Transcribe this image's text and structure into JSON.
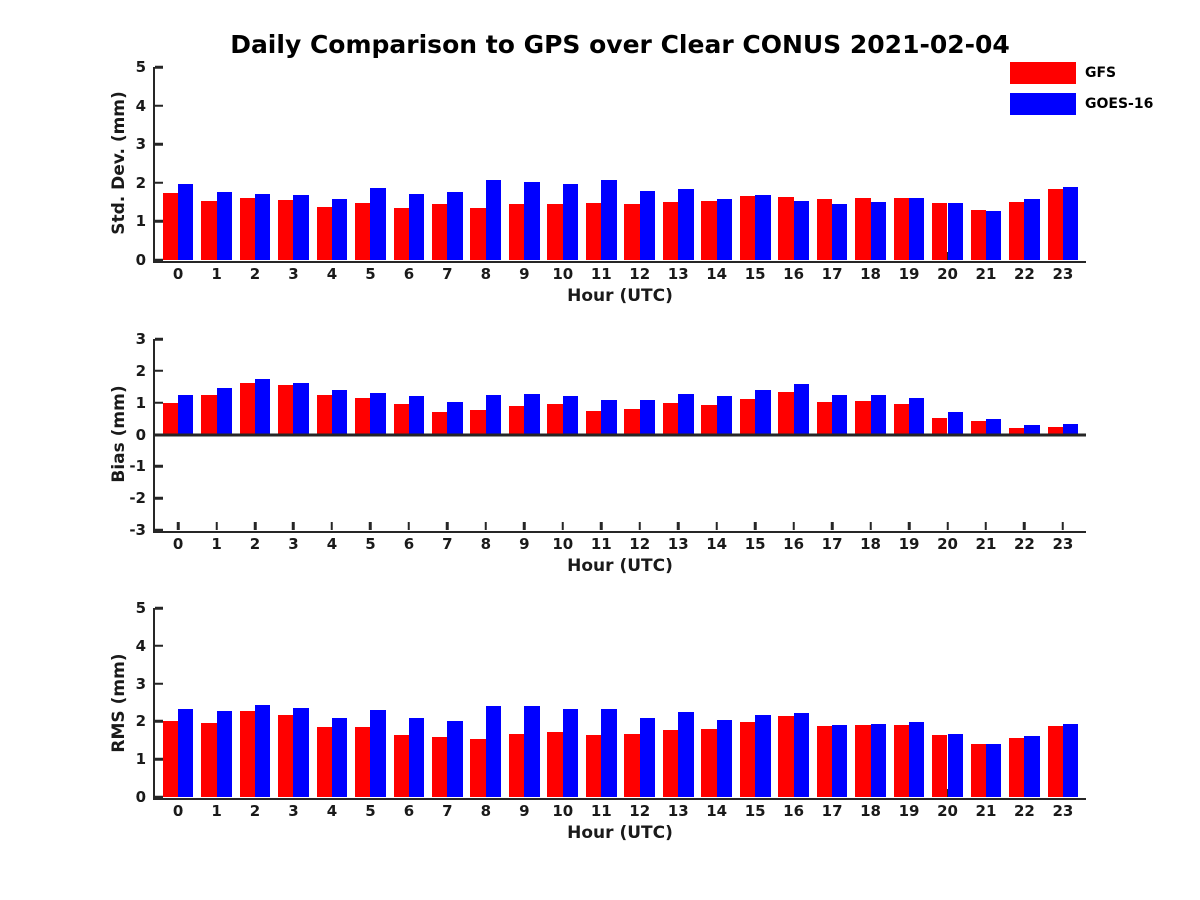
{
  "title": "Daily Comparison to GPS over Clear CONUS 2021-02-04",
  "legend": [
    {
      "label": "GFS",
      "color": "#ff0000"
    },
    {
      "label": "GOES-16",
      "color": "#0000ff"
    }
  ],
  "axis_color": "#262626",
  "chart_data": [
    {
      "type": "bar",
      "ylabel": "Std. Dev. (mm)",
      "xlabel": "Hour (UTC)",
      "ylim": [
        0,
        5
      ],
      "yticks": [
        0,
        1,
        2,
        3,
        4,
        5
      ],
      "grid": false,
      "legend_position": "top-right-outside",
      "categories": [
        "0",
        "1",
        "2",
        "3",
        "4",
        "5",
        "6",
        "7",
        "8",
        "9",
        "10",
        "11",
        "12",
        "13",
        "14",
        "15",
        "16",
        "17",
        "18",
        "19",
        "20",
        "21",
        "22",
        "23"
      ],
      "series": [
        {
          "name": "GFS",
          "color": "#ff0000",
          "values": [
            1.73,
            1.52,
            1.6,
            1.55,
            1.38,
            1.47,
            1.36,
            1.45,
            1.35,
            1.44,
            1.44,
            1.47,
            1.45,
            1.49,
            1.53,
            1.65,
            1.63,
            1.57,
            1.6,
            1.6,
            1.48,
            1.3,
            1.51,
            1.84
          ]
        },
        {
          "name": "GOES-16",
          "color": "#0000ff",
          "values": [
            1.97,
            1.75,
            1.72,
            1.69,
            1.58,
            1.87,
            1.72,
            1.76,
            2.07,
            2.02,
            1.97,
            2.07,
            1.8,
            1.83,
            1.59,
            1.69,
            1.54,
            1.46,
            1.49,
            1.6,
            1.48,
            1.27,
            1.58,
            1.89
          ]
        }
      ]
    },
    {
      "type": "bar",
      "ylabel": "Bias (mm)",
      "xlabel": "Hour (UTC)",
      "ylim": [
        -3,
        3
      ],
      "yticks": [
        -3,
        -2,
        -1,
        0,
        1,
        2,
        3
      ],
      "grid": false,
      "categories": [
        "0",
        "1",
        "2",
        "3",
        "4",
        "5",
        "6",
        "7",
        "8",
        "9",
        "10",
        "11",
        "12",
        "13",
        "14",
        "15",
        "16",
        "17",
        "18",
        "19",
        "20",
        "21",
        "22",
        "23"
      ],
      "series": [
        {
          "name": "GFS",
          "color": "#ff0000",
          "values": [
            1.0,
            1.25,
            1.61,
            1.57,
            1.25,
            1.15,
            0.96,
            0.7,
            0.77,
            0.89,
            0.96,
            0.73,
            0.81,
            0.99,
            0.92,
            1.1,
            1.35,
            1.02,
            1.05,
            0.95,
            0.53,
            0.42,
            0.19,
            0.24
          ]
        },
        {
          "name": "GOES-16",
          "color": "#0000ff",
          "values": [
            1.23,
            1.45,
            1.74,
            1.62,
            1.41,
            1.3,
            1.22,
            1.02,
            1.23,
            1.28,
            1.22,
            1.07,
            1.09,
            1.28,
            1.2,
            1.41,
            1.58,
            1.24,
            1.23,
            1.14,
            0.7,
            0.48,
            0.31,
            0.34
          ]
        }
      ]
    },
    {
      "type": "bar",
      "ylabel": "RMS (mm)",
      "xlabel": "Hour (UTC)",
      "ylim": [
        0,
        5
      ],
      "yticks": [
        0,
        1,
        2,
        3,
        4,
        5
      ],
      "grid": false,
      "categories": [
        "0",
        "1",
        "2",
        "3",
        "4",
        "5",
        "6",
        "7",
        "8",
        "9",
        "10",
        "11",
        "12",
        "13",
        "14",
        "15",
        "16",
        "17",
        "18",
        "19",
        "20",
        "21",
        "22",
        "23"
      ],
      "series": [
        {
          "name": "GFS",
          "color": "#ff0000",
          "values": [
            2.0,
            1.95,
            2.27,
            2.18,
            1.86,
            1.85,
            1.63,
            1.6,
            1.53,
            1.67,
            1.72,
            1.65,
            1.66,
            1.77,
            1.79,
            1.98,
            2.13,
            1.88,
            1.9,
            1.9,
            1.64,
            1.41,
            1.55,
            1.88
          ]
        },
        {
          "name": "GOES-16",
          "color": "#0000ff",
          "values": [
            2.32,
            2.27,
            2.44,
            2.35,
            2.08,
            2.29,
            2.08,
            2.01,
            2.4,
            2.4,
            2.33,
            2.33,
            2.08,
            2.24,
            2.03,
            2.17,
            2.22,
            1.91,
            1.92,
            1.98,
            1.66,
            1.4,
            1.62,
            1.92
          ]
        }
      ]
    }
  ]
}
